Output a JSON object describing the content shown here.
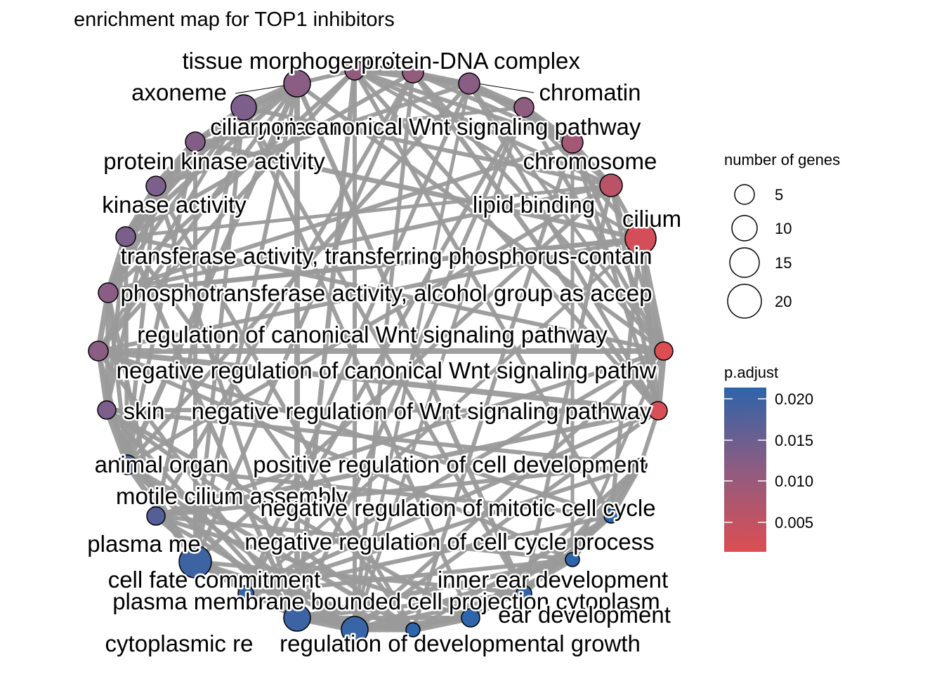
{
  "title": "enrichment map for TOP1 inhibitors",
  "legend": {
    "size_title": "number of genes",
    "size_breaks": [
      "5",
      "10",
      "15",
      "20"
    ],
    "color_title": "p.adjust",
    "color_breaks": [
      "0.020",
      "0.015",
      "0.010",
      "0.005"
    ],
    "color_high": "#2E64AA",
    "color_low": "#DC4E52"
  },
  "nodes": [
    {
      "label": "tissue morphogenesis"
    },
    {
      "label": "protein-DNA complex"
    },
    {
      "label": "axoneme"
    },
    {
      "label": "chromatin"
    },
    {
      "label": "ciliary plasm"
    },
    {
      "label": "non-canonical Wnt signaling pathway"
    },
    {
      "label": "protein kinase activity"
    },
    {
      "label": "chromosome"
    },
    {
      "label": "kinase activity"
    },
    {
      "label": "lipid binding"
    },
    {
      "label": "cilium"
    },
    {
      "label": "transferase activity, transferring phosphorus-contain"
    },
    {
      "label": "phosphotransferase activity, alcohol group as accep"
    },
    {
      "label": "regulation of canonical Wnt signaling pathway"
    },
    {
      "label": "negative regulation of canonical Wnt signaling pathw"
    },
    {
      "label": "skin"
    },
    {
      "label": "negative regulation of Wnt signaling pathway"
    },
    {
      "label": "animal organ"
    },
    {
      "label": "positive regulation of cell development"
    },
    {
      "label": "motile cilium assembly"
    },
    {
      "label": "negative regulation of mitotic cell cycle"
    },
    {
      "label": "plasma me"
    },
    {
      "label": "negative regulation of cell cycle process"
    },
    {
      "label": "cell fate commitment"
    },
    {
      "label": "inner ear development"
    },
    {
      "label": "plasma membrane bounded cell projection cytoplasm"
    },
    {
      "label": "ear development"
    },
    {
      "label": "cytoplasmic re"
    },
    {
      "label": "regulation of developmental growth"
    }
  ]
}
